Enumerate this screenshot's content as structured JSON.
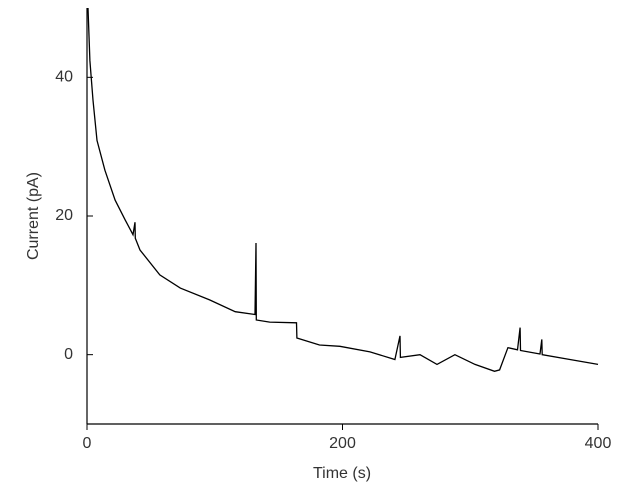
{
  "chart_data": {
    "type": "line",
    "x_label": "Time (s)",
    "y_label": "Current (pA)",
    "color": "#000000",
    "x": [
      0.8,
      2.3,
      4.7,
      7.8,
      14,
      22,
      30,
      36,
      37.6,
      37.8,
      41.5,
      57,
      73,
      96,
      116,
      131.5,
      132.3,
      132.5,
      143,
      164,
      164.3,
      182,
      198,
      221.5,
      241,
      245,
      245.3,
      260.7,
      274,
      288,
      303.7,
      319,
      323,
      329.5,
      337,
      339,
      339.3,
      354.6,
      356,
      356.3,
      378,
      400
    ],
    "values": [
      50,
      42.4,
      36.7,
      30.9,
      26.6,
      22.3,
      19.4,
      17.3,
      19.1,
      16.8,
      15.1,
      11.5,
      9.6,
      7.9,
      6.2,
      5.8,
      16.1,
      5.0,
      4.7,
      4.6,
      2.4,
      1.4,
      1.2,
      0.4,
      -0.7,
      2.7,
      -0.4,
      0,
      -1.4,
      0,
      -1.4,
      -2.4,
      -2.2,
      1.0,
      0.7,
      3.9,
      0.6,
      0.1,
      2.2,
      0,
      -0.7,
      -1.4
    ],
    "xlim": [
      0,
      400
    ],
    "xticks": [
      0,
      200,
      400
    ],
    "ylim": [
      -10,
      50
    ],
    "yticks": [
      0,
      20,
      40
    ]
  }
}
